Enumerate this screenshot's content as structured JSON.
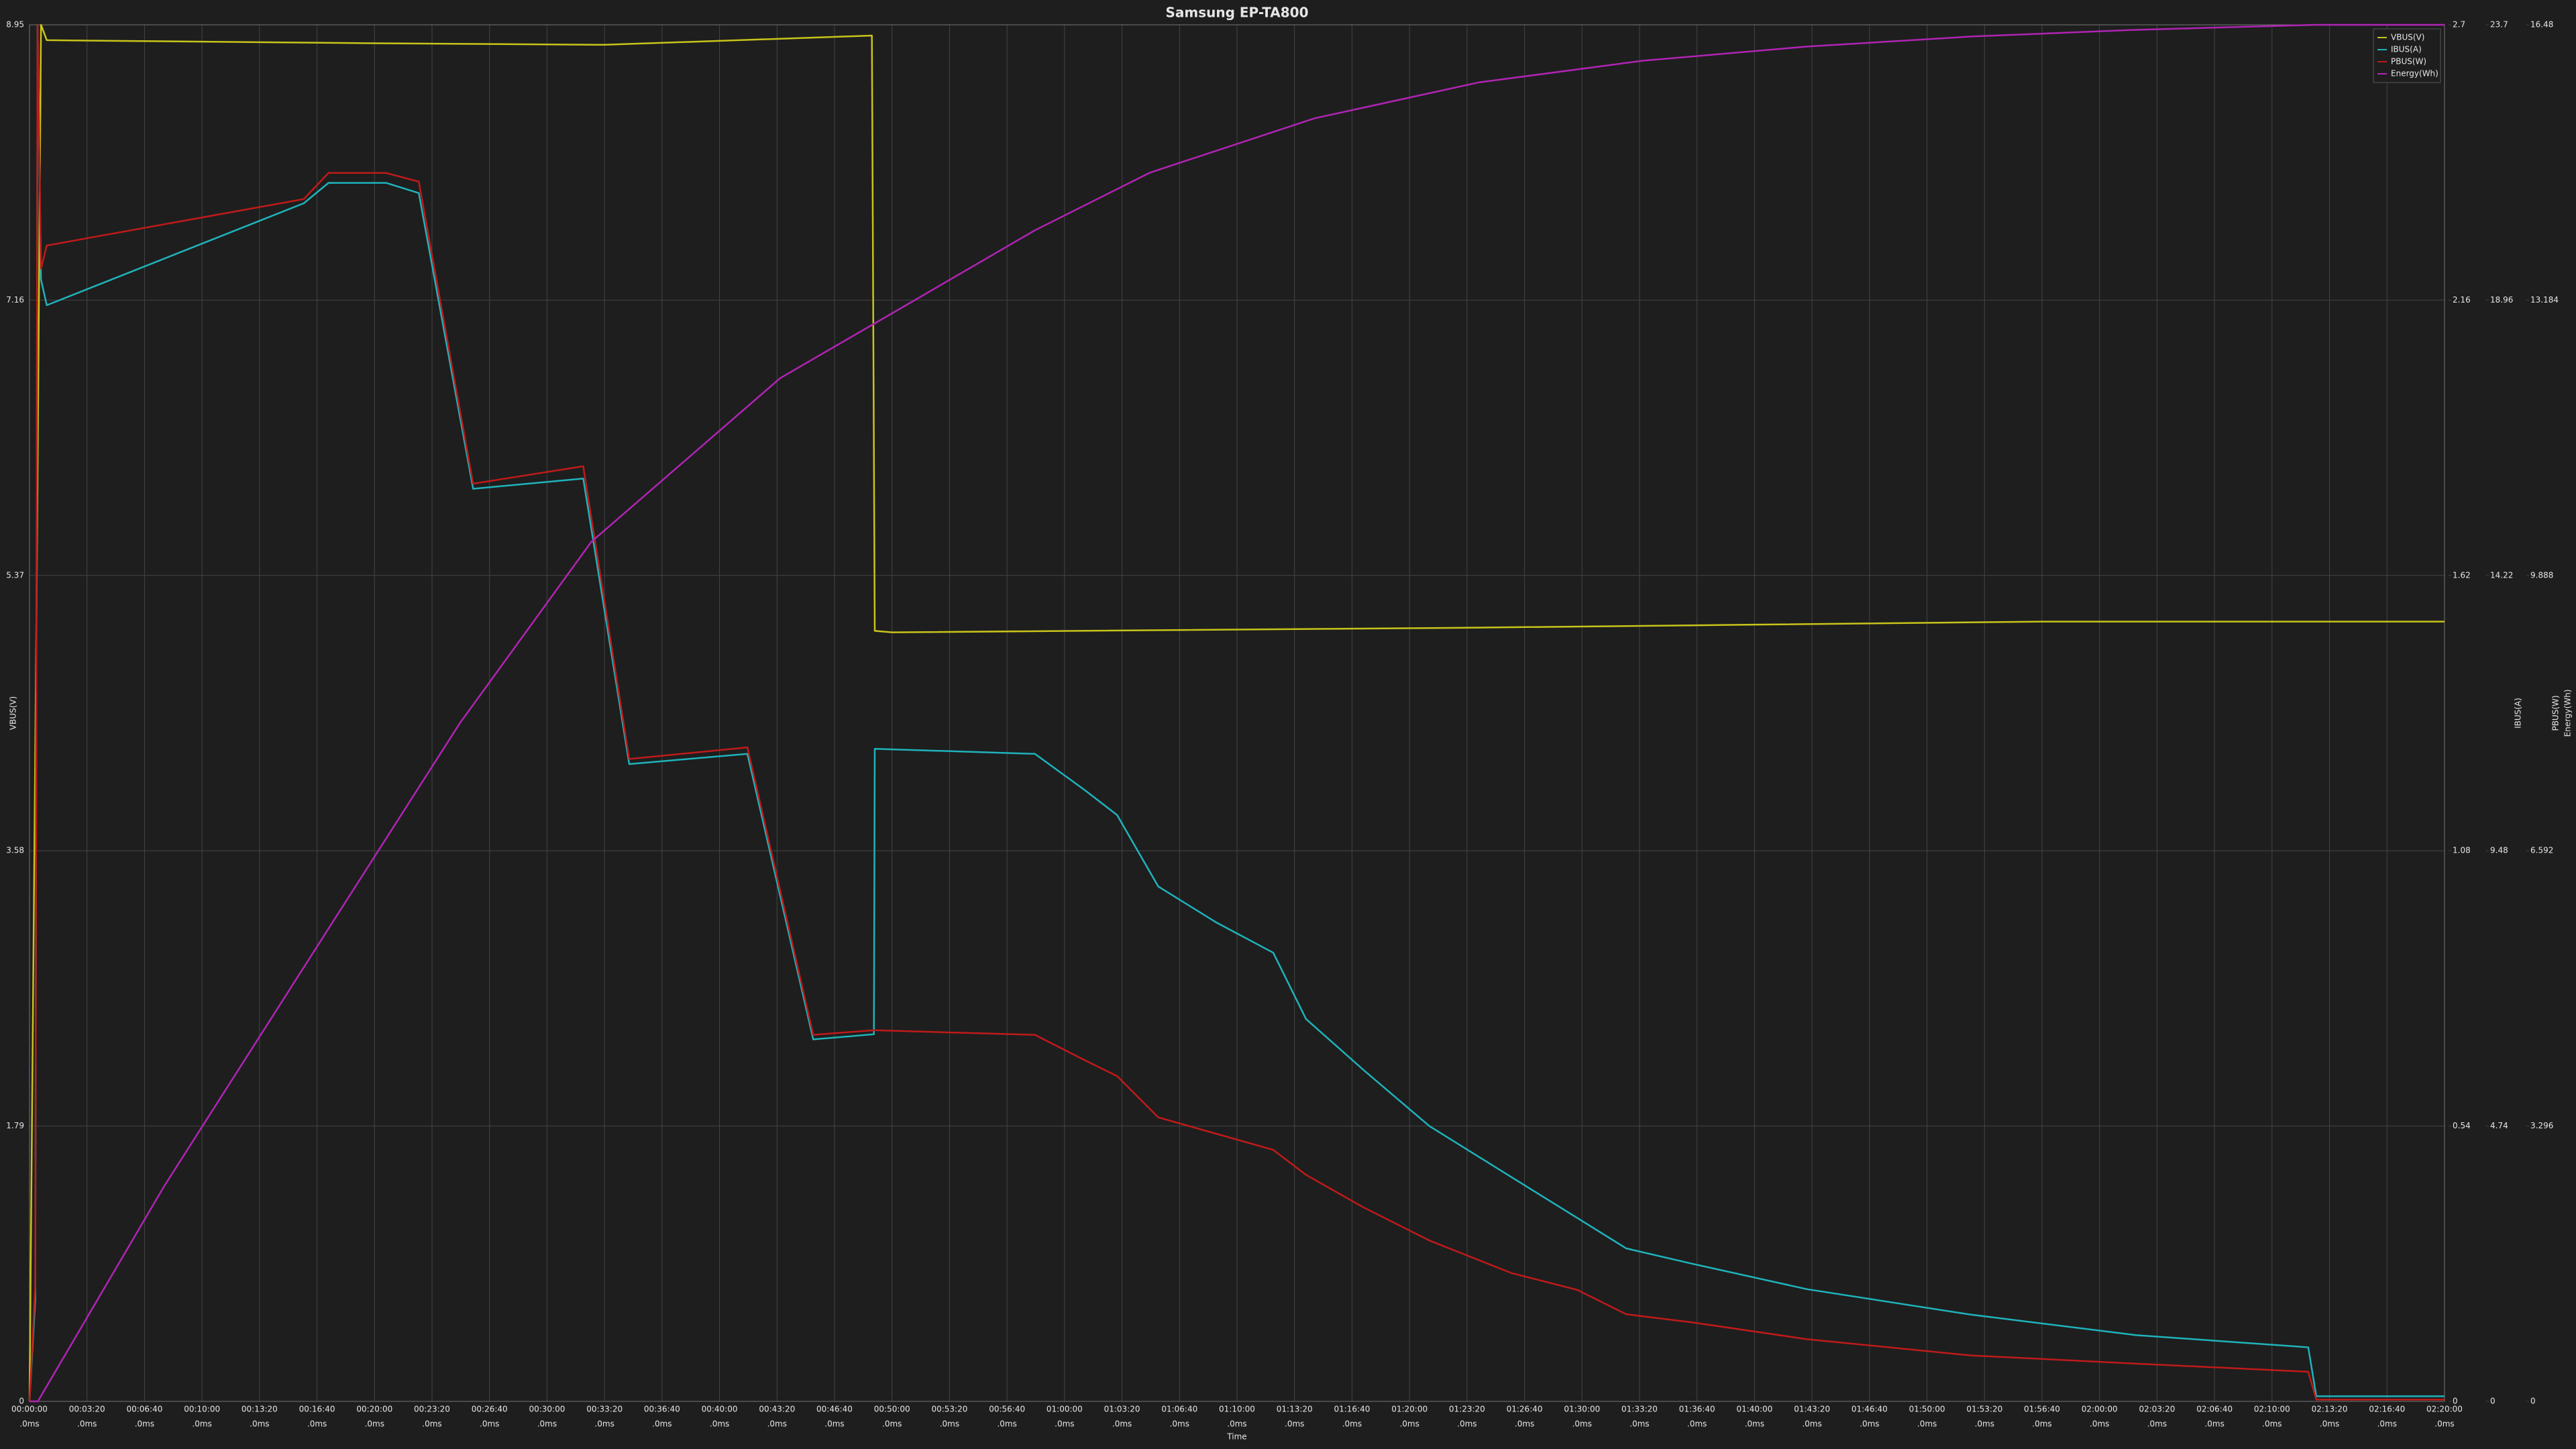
{
  "chart_data": {
    "type": "line",
    "title": "Samsung EP-TA800",
    "xlabel": "Time",
    "ylabel": "VBUS(V)",
    "y2label": "IBUS(A)",
    "y3label": "PBUS(W)",
    "y4label": "Energy(Wh)",
    "grid": true,
    "legend": "upper right",
    "xlim": [
      0,
      8400
    ],
    "xtick_sublabel": ".0ms",
    "xticks": [
      {
        "value": 0,
        "label": "00:00:00"
      },
      {
        "value": 200,
        "label": "00:03:20"
      },
      {
        "value": 400,
        "label": "00:06:40"
      },
      {
        "value": 600,
        "label": "00:10:00"
      },
      {
        "value": 800,
        "label": "00:13:20"
      },
      {
        "value": 1000,
        "label": "00:16:40"
      },
      {
        "value": 1200,
        "label": "00:20:00"
      },
      {
        "value": 1400,
        "label": "00:23:20"
      },
      {
        "value": 1600,
        "label": "00:26:40"
      },
      {
        "value": 1800,
        "label": "00:30:00"
      },
      {
        "value": 2000,
        "label": "00:33:20"
      },
      {
        "value": 2200,
        "label": "00:36:40"
      },
      {
        "value": 2400,
        "label": "00:40:00"
      },
      {
        "value": 2600,
        "label": "00:43:20"
      },
      {
        "value": 2800,
        "label": "00:46:40"
      },
      {
        "value": 3000,
        "label": "00:50:00"
      },
      {
        "value": 3200,
        "label": "00:53:20"
      },
      {
        "value": 3400,
        "label": "00:56:40"
      },
      {
        "value": 3600,
        "label": "01:00:00"
      },
      {
        "value": 3800,
        "label": "01:03:20"
      },
      {
        "value": 4000,
        "label": "01:06:40"
      },
      {
        "value": 4200,
        "label": "01:10:00"
      },
      {
        "value": 4400,
        "label": "01:13:20"
      },
      {
        "value": 4600,
        "label": "01:16:40"
      },
      {
        "value": 4800,
        "label": "01:20:00"
      },
      {
        "value": 5000,
        "label": "01:23:20"
      },
      {
        "value": 5200,
        "label": "01:26:40"
      },
      {
        "value": 5400,
        "label": "01:30:00"
      },
      {
        "value": 5600,
        "label": "01:33:20"
      },
      {
        "value": 5800,
        "label": "01:36:40"
      },
      {
        "value": 6000,
        "label": "01:40:00"
      },
      {
        "value": 6200,
        "label": "01:43:20"
      },
      {
        "value": 6400,
        "label": "01:46:40"
      },
      {
        "value": 6600,
        "label": "01:50:00"
      },
      {
        "value": 6800,
        "label": "01:53:20"
      },
      {
        "value": 7000,
        "label": "01:56:40"
      },
      {
        "value": 7200,
        "label": "02:00:00"
      },
      {
        "value": 7400,
        "label": "02:03:20"
      },
      {
        "value": 7600,
        "label": "02:06:40"
      },
      {
        "value": 7800,
        "label": "02:10:00"
      },
      {
        "value": 8000,
        "label": "02:13:20"
      },
      {
        "value": 8200,
        "label": "02:16:40"
      },
      {
        "value": 8400,
        "label": "02:20:00"
      }
    ],
    "ylim": [
      0,
      8.95
    ],
    "yticks": [
      0,
      1.79,
      3.58,
      5.37,
      7.16,
      8.95
    ],
    "y2lim": [
      0,
      2.7
    ],
    "y2ticks": [
      0,
      0.54,
      1.08,
      1.62,
      2.16,
      2.7
    ],
    "y3lim": [
      0,
      23.7
    ],
    "y3ticks": [
      0,
      4.74,
      9.48,
      14.22,
      18.96,
      23.7
    ],
    "y4lim": [
      0,
      16.48
    ],
    "y4ticks": [
      0,
      3.296,
      6.592,
      9.888,
      13.184,
      16.48
    ],
    "series": [
      {
        "name": "VBUS(V)",
        "color": "#c8c41a",
        "axis": "y",
        "x": [
          0,
          25,
          40,
          60,
          1200,
          2000,
          2930,
          2940,
          3000,
          5000,
          6000,
          7000,
          7950,
          8400
        ],
        "values": [
          0,
          5.3,
          8.95,
          8.85,
          8.83,
          8.82,
          8.88,
          5.01,
          5.0,
          5.03,
          5.05,
          5.07,
          5.07,
          5.07
        ]
      },
      {
        "name": "IBUS(A)",
        "color": "#1fb3bb",
        "axis": "y2",
        "x": [
          0,
          20,
          28,
          40,
          60,
          954,
          1040,
          1240,
          1354,
          1543,
          1926,
          2086,
          2497,
          2726,
          2937,
          2940,
          3497,
          3668,
          3783,
          3926,
          4126,
          4326,
          4440,
          4640,
          4869,
          5154,
          5383,
          5554,
          5783,
          6183,
          6754,
          7326,
          7926,
          7954,
          8400
        ],
        "values": [
          0,
          0.2,
          2.7,
          2.2,
          2.15,
          2.35,
          2.39,
          2.39,
          2.37,
          1.79,
          1.81,
          1.25,
          1.27,
          0.71,
          0.72,
          1.28,
          1.27,
          1.2,
          1.15,
          1.01,
          0.94,
          0.88,
          0.75,
          0.65,
          0.54,
          0.44,
          0.36,
          0.3,
          0.27,
          0.22,
          0.17,
          0.13,
          0.106,
          0.01,
          0.01
        ]
      },
      {
        "name": "PBUS(W)",
        "color": "#c01a1a",
        "axis": "y3",
        "x": [
          0,
          20,
          28,
          40,
          60,
          954,
          1040,
          1240,
          1354,
          1543,
          1926,
          2086,
          2497,
          2726,
          2937,
          2940,
          3497,
          3668,
          3783,
          3926,
          4126,
          4326,
          4440,
          4640,
          4869,
          5154,
          5383,
          5554,
          5783,
          6183,
          6754,
          7326,
          7926,
          7954,
          8400
        ],
        "values": [
          0,
          2,
          23.7,
          19.5,
          19.9,
          20.7,
          21.15,
          21.15,
          21.0,
          15.8,
          16.1,
          11.06,
          11.26,
          6.31,
          6.39,
          6.39,
          6.31,
          5.88,
          5.6,
          4.89,
          4.61,
          4.33,
          3.9,
          3.34,
          2.77,
          2.21,
          1.92,
          1.5,
          1.36,
          1.07,
          0.79,
          0.65,
          0.51,
          0.03,
          0.03
        ]
      },
      {
        "name": "Energy(Wh)",
        "color": "#b024b4",
        "axis": "y4",
        "x": [
          0,
          29,
          469,
          1040,
          1497,
          1954,
          2611,
          2937,
          3497,
          3897,
          4469,
          5040,
          5611,
          6183,
          6754,
          7326,
          7954,
          8400
        ],
        "values": [
          0,
          0,
          2.58,
          5.66,
          8.12,
          10.29,
          12.25,
          12.9,
          14.02,
          14.71,
          15.36,
          15.79,
          16.05,
          16.22,
          16.34,
          16.42,
          16.48,
          16.48
        ]
      }
    ]
  }
}
